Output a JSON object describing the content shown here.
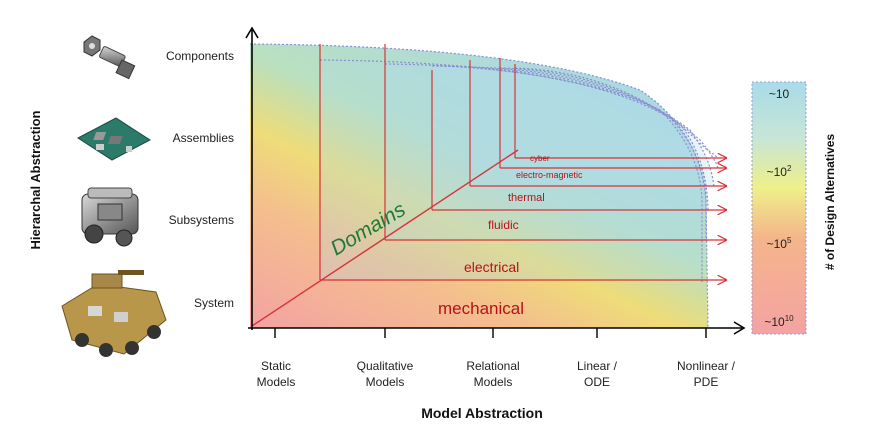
{
  "y_axis": {
    "title": "Hierarchal Abstraction",
    "levels": [
      "Components",
      "Assemblies",
      "Subsystems",
      "System"
    ]
  },
  "x_axis": {
    "title": "Model Abstraction",
    "levels": [
      [
        "Static",
        "Models"
      ],
      [
        "Qualitative",
        "Models"
      ],
      [
        "Relational",
        "Models"
      ],
      [
        "Linear /",
        "ODE"
      ],
      [
        "Nonlinear /",
        "PDE"
      ]
    ]
  },
  "depth_axis": {
    "title": "Domains"
  },
  "domains": [
    "mechanical",
    "electrical",
    "fluidic",
    "thermal",
    "electro-magnetic",
    "cyber"
  ],
  "colorbar": {
    "title": "# of Design Alternatives",
    "ticks": [
      {
        "base": "~10",
        "exp": ""
      },
      {
        "base": "~10",
        "exp": "2"
      },
      {
        "base": "~10",
        "exp": "5"
      },
      {
        "base": "~10",
        "exp": "10"
      }
    ]
  },
  "icons": [
    "bolt-icon",
    "circuit-board-icon",
    "engine-icon",
    "vehicle-icon"
  ],
  "colors": {
    "axis": "#000000",
    "domain_line": "#d9323a",
    "domain_text": "#b5121b",
    "domains_word": "#1f7a3a"
  }
}
